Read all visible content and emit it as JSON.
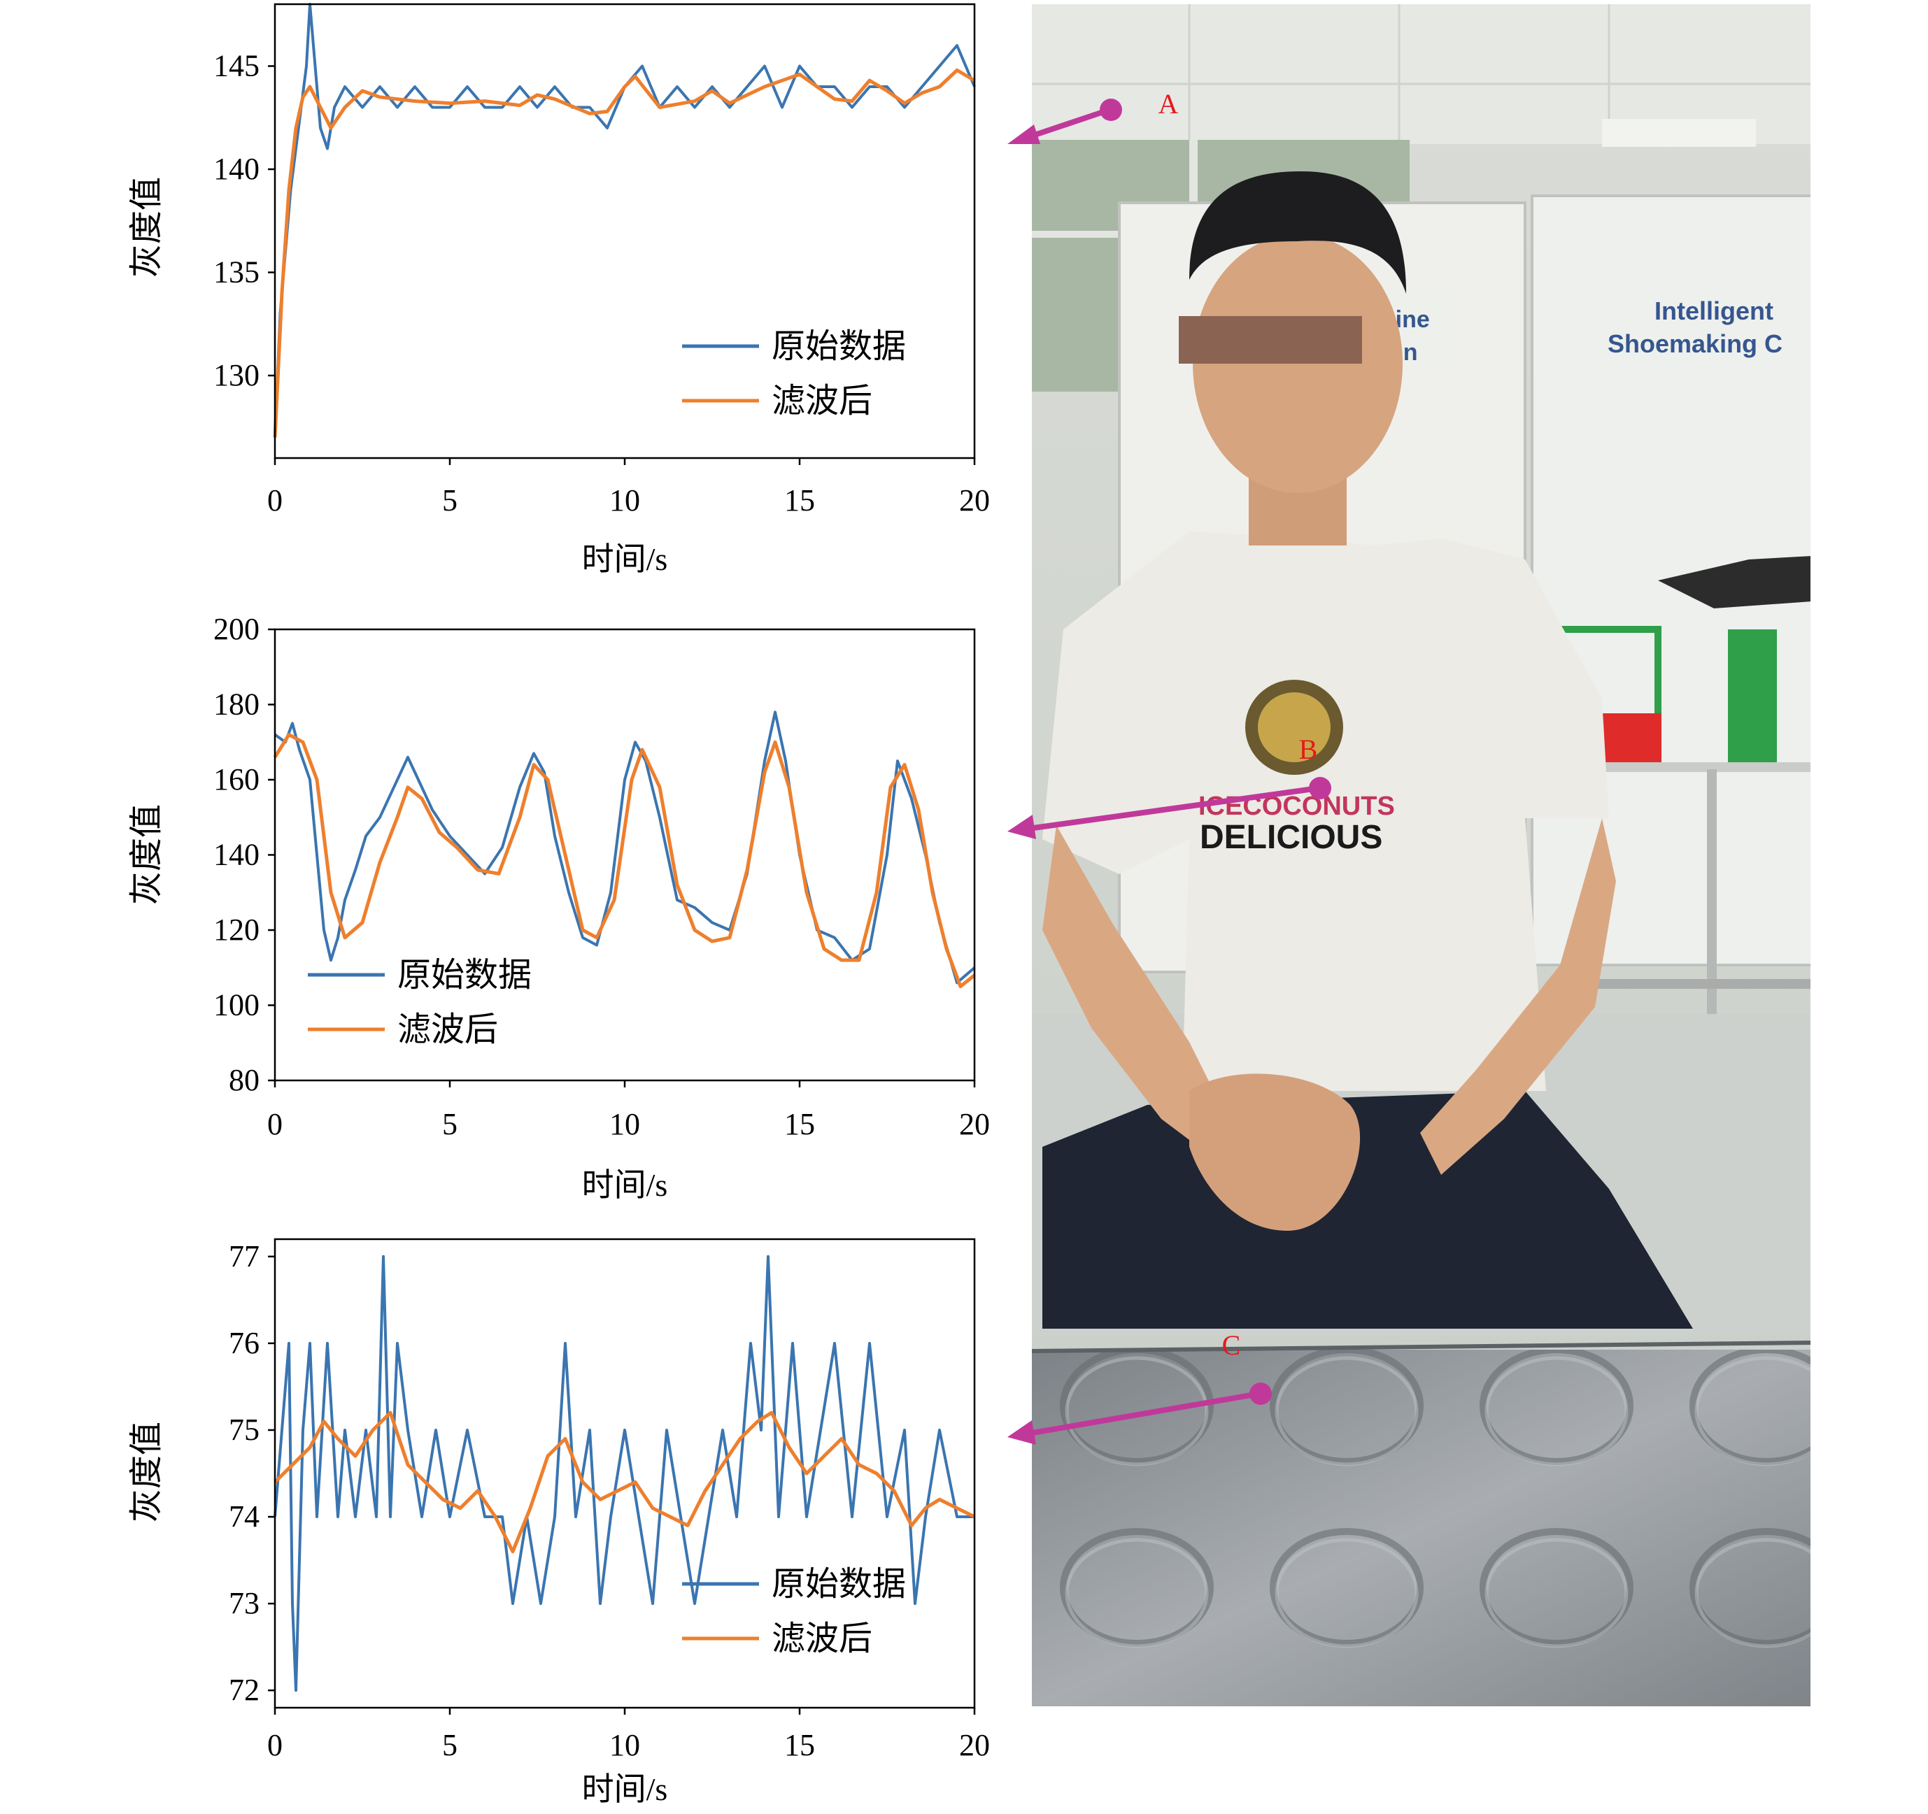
{
  "figure": {
    "charts": [
      {
        "ylabel": "灰度值",
        "xlabel": "时间/s",
        "xlim": [
          0,
          20
        ],
        "ylim": [
          126,
          148
        ],
        "yticks": [
          130,
          135,
          140,
          145
        ],
        "xticks": [
          0,
          5,
          10,
          15,
          20
        ]
      },
      {
        "ylabel": "灰度值",
        "xlabel": "时间/s",
        "xlim": [
          0,
          20
        ],
        "ylim": [
          80,
          200
        ],
        "yticks": [
          80,
          100,
          120,
          140,
          160,
          180,
          200
        ],
        "xticks": [
          0,
          5,
          10,
          15,
          20
        ]
      },
      {
        "ylabel": "灰度值",
        "xlabel": "时间/s",
        "xlim": [
          0,
          20
        ],
        "ylim": [
          71.8,
          77.2
        ],
        "yticks": [
          72,
          73,
          74,
          75,
          76,
          77
        ],
        "xticks": [
          0,
          5,
          10,
          15,
          20
        ]
      }
    ],
    "legend": {
      "raw": "原始数据",
      "filtered": "滤波后"
    },
    "colors": {
      "raw": "#3a75b0",
      "filtered": "#ee7f2d",
      "arrow": "#c0399a",
      "marker_label": "#e41a1c"
    },
    "photo": {
      "markers": [
        "A",
        "B",
        "C"
      ],
      "sign_left": [
        "chine",
        "on"
      ],
      "sign_right": [
        "Intelligent",
        "Shoemaking C"
      ],
      "shirt": [
        "ICECOCONUTS",
        "DELICIOUS"
      ]
    }
  },
  "chart_data": [
    {
      "type": "line",
      "xlabel": "时间/s",
      "ylabel": "灰度值",
      "xlim": [
        0,
        20
      ],
      "ylim": [
        126,
        148
      ],
      "series": [
        {
          "name": "原始数据",
          "x": [
            0,
            0.15,
            0.3,
            0.45,
            0.6,
            0.75,
            0.9,
            1.0,
            1.15,
            1.3,
            1.5,
            1.7,
            2.0,
            2.5,
            3,
            3.5,
            4,
            4.5,
            5,
            5.5,
            6,
            6.5,
            7,
            7.5,
            8,
            8.5,
            9,
            9.5,
            10,
            10.5,
            11,
            11.5,
            12,
            12.5,
            13,
            13.5,
            14,
            14.5,
            15,
            15.5,
            16,
            16.5,
            17,
            17.5,
            18,
            18.5,
            19,
            19.5,
            20
          ],
          "y": [
            127,
            133,
            136,
            139,
            141,
            143,
            145,
            148,
            145,
            142,
            141,
            143,
            144,
            143,
            144,
            143,
            144,
            143,
            143,
            144,
            143,
            143,
            144,
            143,
            144,
            143,
            143,
            142,
            144,
            145,
            143,
            144,
            143,
            144,
            143,
            144,
            145,
            143,
            145,
            144,
            144,
            143,
            144,
            144,
            143,
            144,
            145,
            146,
            144
          ]
        },
        {
          "name": "滤波后",
          "x": [
            0,
            0.2,
            0.4,
            0.6,
            0.8,
            1.0,
            1.3,
            1.6,
            2,
            2.5,
            3,
            4,
            5,
            6,
            7,
            7.5,
            8,
            9,
            9.5,
            10,
            10.3,
            11,
            12,
            12.5,
            13,
            14,
            15,
            16,
            16.5,
            17,
            17.5,
            18,
            18.5,
            19,
            19.5,
            20
          ],
          "y": [
            127,
            134,
            139,
            142,
            143.5,
            144,
            143,
            142,
            143,
            143.8,
            143.5,
            143.3,
            143.2,
            143.3,
            143.1,
            143.6,
            143.4,
            142.7,
            142.8,
            144.0,
            144.5,
            143.0,
            143.3,
            143.8,
            143.2,
            144.0,
            144.6,
            143.4,
            143.3,
            144.3,
            143.8,
            143.2,
            143.7,
            144.0,
            144.8,
            144.3
          ]
        }
      ]
    },
    {
      "type": "line",
      "xlabel": "时间/s",
      "ylabel": "灰度值",
      "xlim": [
        0,
        20
      ],
      "ylim": [
        80,
        200
      ],
      "series": [
        {
          "name": "原始数据",
          "x": [
            0,
            0.3,
            0.5,
            0.7,
            1.0,
            1.2,
            1.4,
            1.6,
            1.8,
            2.0,
            2.3,
            2.6,
            3.0,
            3.4,
            3.8,
            4.1,
            4.5,
            5.0,
            5.5,
            6.0,
            6.5,
            7.0,
            7.4,
            7.7,
            8.0,
            8.4,
            8.8,
            9.2,
            9.6,
            10.0,
            10.3,
            10.6,
            11.0,
            11.5,
            12.0,
            12.5,
            13.0,
            13.5,
            14.0,
            14.3,
            14.6,
            15.0,
            15.5,
            16.0,
            16.5,
            17.0,
            17.5,
            17.8,
            18.2,
            18.6,
            19.0,
            19.5,
            20.0
          ],
          "y": [
            172,
            170,
            175,
            168,
            160,
            140,
            120,
            112,
            118,
            128,
            136,
            145,
            150,
            158,
            166,
            160,
            152,
            145,
            140,
            135,
            142,
            158,
            167,
            162,
            145,
            130,
            118,
            116,
            130,
            160,
            170,
            165,
            150,
            128,
            126,
            122,
            120,
            135,
            165,
            178,
            165,
            140,
            120,
            118,
            112,
            115,
            140,
            165,
            155,
            140,
            122,
            106,
            110
          ]
        },
        {
          "name": "滤波后",
          "x": [
            0,
            0.4,
            0.8,
            1.2,
            1.6,
            2.0,
            2.5,
            3.0,
            3.5,
            3.8,
            4.2,
            4.7,
            5.2,
            5.8,
            6.4,
            7.0,
            7.4,
            7.8,
            8.3,
            8.8,
            9.2,
            9.7,
            10.2,
            10.5,
            11.0,
            11.5,
            12.0,
            12.5,
            13.0,
            13.5,
            14.0,
            14.3,
            14.7,
            15.2,
            15.7,
            16.2,
            16.7,
            17.2,
            17.6,
            18.0,
            18.4,
            18.8,
            19.2,
            19.6,
            20.0
          ],
          "y": [
            166,
            172,
            170,
            160,
            130,
            118,
            122,
            138,
            150,
            158,
            155,
            146,
            142,
            136,
            135,
            150,
            164,
            160,
            140,
            120,
            118,
            128,
            160,
            168,
            158,
            132,
            120,
            117,
            118,
            136,
            162,
            170,
            158,
            130,
            115,
            112,
            112,
            130,
            158,
            164,
            152,
            130,
            115,
            105,
            108
          ]
        }
      ]
    },
    {
      "type": "line",
      "xlabel": "时间/s",
      "ylabel": "灰度值",
      "xlim": [
        0,
        20
      ],
      "ylim": [
        71.8,
        77.2
      ],
      "series": [
        {
          "name": "原始数据",
          "x": [
            0,
            0.2,
            0.4,
            0.5,
            0.6,
            0.8,
            1.0,
            1.2,
            1.5,
            1.8,
            2.0,
            2.3,
            2.6,
            2.9,
            3.1,
            3.3,
            3.5,
            3.8,
            4.2,
            4.6,
            5.0,
            5.5,
            6.0,
            6.5,
            6.8,
            7.2,
            7.6,
            8.0,
            8.3,
            8.6,
            9.0,
            9.3,
            9.6,
            10.0,
            10.4,
            10.8,
            11.2,
            11.6,
            12.0,
            12.4,
            12.8,
            13.2,
            13.6,
            13.9,
            14.1,
            14.4,
            14.8,
            15.2,
            15.6,
            16.0,
            16.5,
            17.0,
            17.5,
            18.0,
            18.3,
            18.6,
            19.0,
            19.5,
            20.0
          ],
          "y": [
            74,
            75,
            76,
            73,
            72,
            75,
            76,
            74,
            76,
            74,
            75,
            74,
            75,
            74,
            77,
            74,
            76,
            75,
            74,
            75,
            74,
            75,
            74,
            74,
            73,
            74,
            73,
            74,
            76,
            74,
            75,
            73,
            74,
            75,
            74,
            73,
            75,
            74,
            73,
            74,
            75,
            74,
            76,
            75,
            77,
            74,
            76,
            74,
            75,
            76,
            74,
            76,
            74,
            75,
            73,
            74,
            75,
            74,
            74
          ]
        },
        {
          "name": "滤波后",
          "x": [
            0,
            0.5,
            1.0,
            1.4,
            1.8,
            2.3,
            2.8,
            3.3,
            3.8,
            4.3,
            4.8,
            5.3,
            5.8,
            6.3,
            6.8,
            7.3,
            7.8,
            8.3,
            8.8,
            9.3,
            9.8,
            10.3,
            10.8,
            11.3,
            11.8,
            12.3,
            12.8,
            13.3,
            13.8,
            14.2,
            14.7,
            15.2,
            15.7,
            16.2,
            16.7,
            17.2,
            17.7,
            18.2,
            18.6,
            19.0,
            19.5,
            20.0
          ],
          "y": [
            74.4,
            74.6,
            74.8,
            75.1,
            74.9,
            74.7,
            75.0,
            75.2,
            74.6,
            74.4,
            74.2,
            74.1,
            74.3,
            74.0,
            73.6,
            74.1,
            74.7,
            74.9,
            74.4,
            74.2,
            74.3,
            74.4,
            74.1,
            74.0,
            73.9,
            74.3,
            74.6,
            74.9,
            75.1,
            75.2,
            74.8,
            74.5,
            74.7,
            74.9,
            74.6,
            74.5,
            74.3,
            73.9,
            74.1,
            74.2,
            74.1,
            74.0
          ]
        }
      ]
    }
  ]
}
